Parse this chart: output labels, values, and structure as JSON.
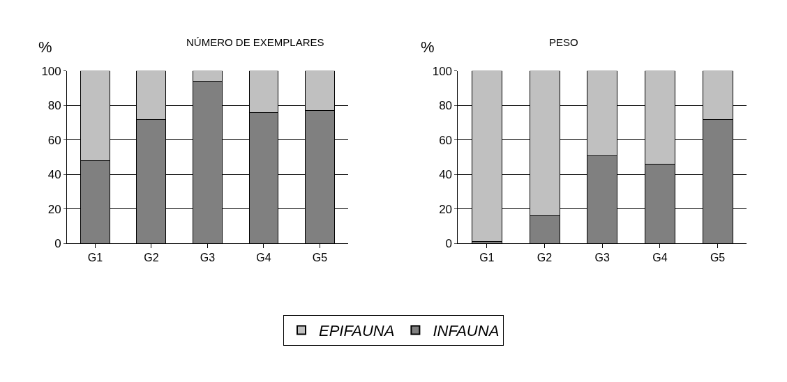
{
  "chart_data": [
    {
      "type": "bar",
      "title": "NÚMERO DE EXEMPLARES",
      "ylabel": "%",
      "categories": [
        "G1",
        "G2",
        "G3",
        "G4",
        "G5"
      ],
      "stacked": true,
      "series": [
        {
          "name": "INFAUNA",
          "color": "#808080",
          "values": [
            48,
            72,
            94,
            76,
            77
          ]
        },
        {
          "name": "EPIFAUNA",
          "color": "#c0c0c0",
          "values": [
            52,
            28,
            6,
            24,
            23
          ]
        }
      ],
      "ylim": [
        0,
        100
      ],
      "yticks": [
        0,
        20,
        40,
        60,
        80,
        100
      ],
      "grid": "y",
      "legend": "bottom"
    },
    {
      "type": "bar",
      "title": "PESO",
      "ylabel": "%",
      "categories": [
        "G1",
        "G2",
        "G3",
        "G4",
        "G5"
      ],
      "stacked": true,
      "series": [
        {
          "color": "#808080",
          "values": [
            1,
            16,
            51,
            46,
            72
          ]
        },
        {
          "color": "#c0c0c0",
          "values": [
            99,
            84,
            49,
            54,
            28
          ]
        }
      ],
      "ylim": [
        0,
        100
      ],
      "yticks": [
        0,
        20,
        40,
        60,
        80,
        100
      ],
      "grid": "y"
    }
  ]
}
